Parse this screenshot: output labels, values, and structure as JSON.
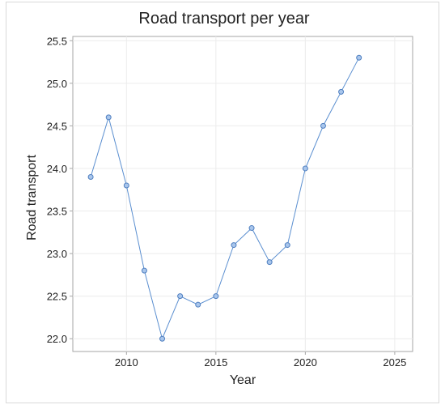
{
  "chart_data": {
    "type": "line",
    "title": "Road transport per year",
    "xlabel": "Year",
    "ylabel": "Road transport",
    "xlim": [
      2007,
      2026
    ],
    "ylim": [
      21.85,
      25.55
    ],
    "x_ticks": [
      2010,
      2015,
      2020,
      2025
    ],
    "y_ticks": [
      22.0,
      22.5,
      23.0,
      23.5,
      24.0,
      24.5,
      25.0,
      25.5
    ],
    "x_tick_labels": [
      "2010",
      "2015",
      "2020",
      "2025"
    ],
    "y_tick_labels": [
      "22.0",
      "22.5",
      "23.0",
      "23.5",
      "24.0",
      "24.5",
      "25.0",
      "25.5"
    ],
    "grid": true,
    "series": [
      {
        "x": [
          2008,
          2009,
          2010,
          2011,
          2012,
          2013,
          2014,
          2015,
          2016,
          2017,
          2018,
          2019,
          2020,
          2021,
          2022,
          2023
        ],
        "values": [
          23.9,
          24.6,
          23.8,
          22.8,
          22.0,
          22.5,
          22.4,
          22.5,
          23.1,
          23.3,
          22.9,
          23.1,
          24.0,
          24.5,
          24.9,
          25.3
        ],
        "color": "#5b8fd0"
      }
    ]
  }
}
